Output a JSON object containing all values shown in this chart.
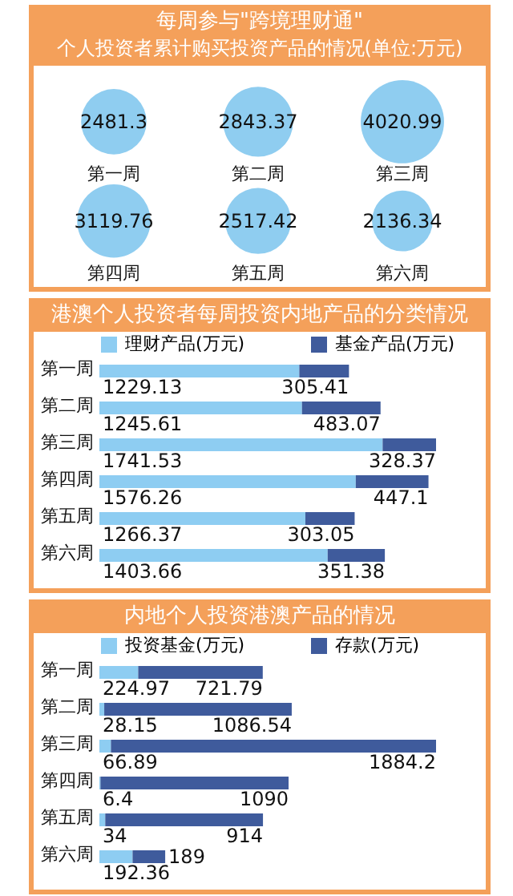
{
  "chart_data": [
    {
      "type": "other",
      "title": "每周参与\"跨境理财通\"",
      "subtitle": "个人投资者累计购买投资产品的情况(单位:万元)",
      "categories": [
        "第一周",
        "第二周",
        "第三周",
        "第四周",
        "第五周",
        "第六周"
      ],
      "values": [
        2481.3,
        2843.37,
        4020.99,
        3119.76,
        2517.42,
        2136.34
      ],
      "color": "#8fcdf0",
      "data_labels": true
    },
    {
      "type": "bar",
      "orientation": "horizontal",
      "stacked": true,
      "title": "港澳个人投资者每周投资内地产品的分类情况",
      "categories": [
        "第一周",
        "第二周",
        "第三周",
        "第四周",
        "第五周",
        "第六周"
      ],
      "legend": "top",
      "data_labels": true,
      "series": [
        {
          "name": "理财产品(万元)",
          "color": "#8ecdf2",
          "values": [
            1229.13,
            1245.61,
            1741.53,
            1576.26,
            1266.37,
            1403.66
          ]
        },
        {
          "name": "基金产品(万元)",
          "color": "#3f5b9c",
          "values": [
            305.41,
            483.07,
            328.37,
            447.1,
            303.05,
            351.38
          ]
        }
      ]
    },
    {
      "type": "bar",
      "orientation": "horizontal",
      "stacked": true,
      "title": "内地个人投资港澳产品的情况",
      "categories": [
        "第一周",
        "第二周",
        "第三周",
        "第四周",
        "第五周",
        "第六周"
      ],
      "legend": "top",
      "data_labels": true,
      "series": [
        {
          "name": "投资基金(万元)",
          "color": "#8ecdf2",
          "values": [
            224.97,
            28.15,
            66.89,
            6.4,
            34,
            192.36
          ]
        },
        {
          "name": "存款(万元)",
          "color": "#3f5b9c",
          "values": [
            721.79,
            1086.54,
            1884.2,
            1090,
            914,
            189
          ]
        }
      ]
    }
  ]
}
